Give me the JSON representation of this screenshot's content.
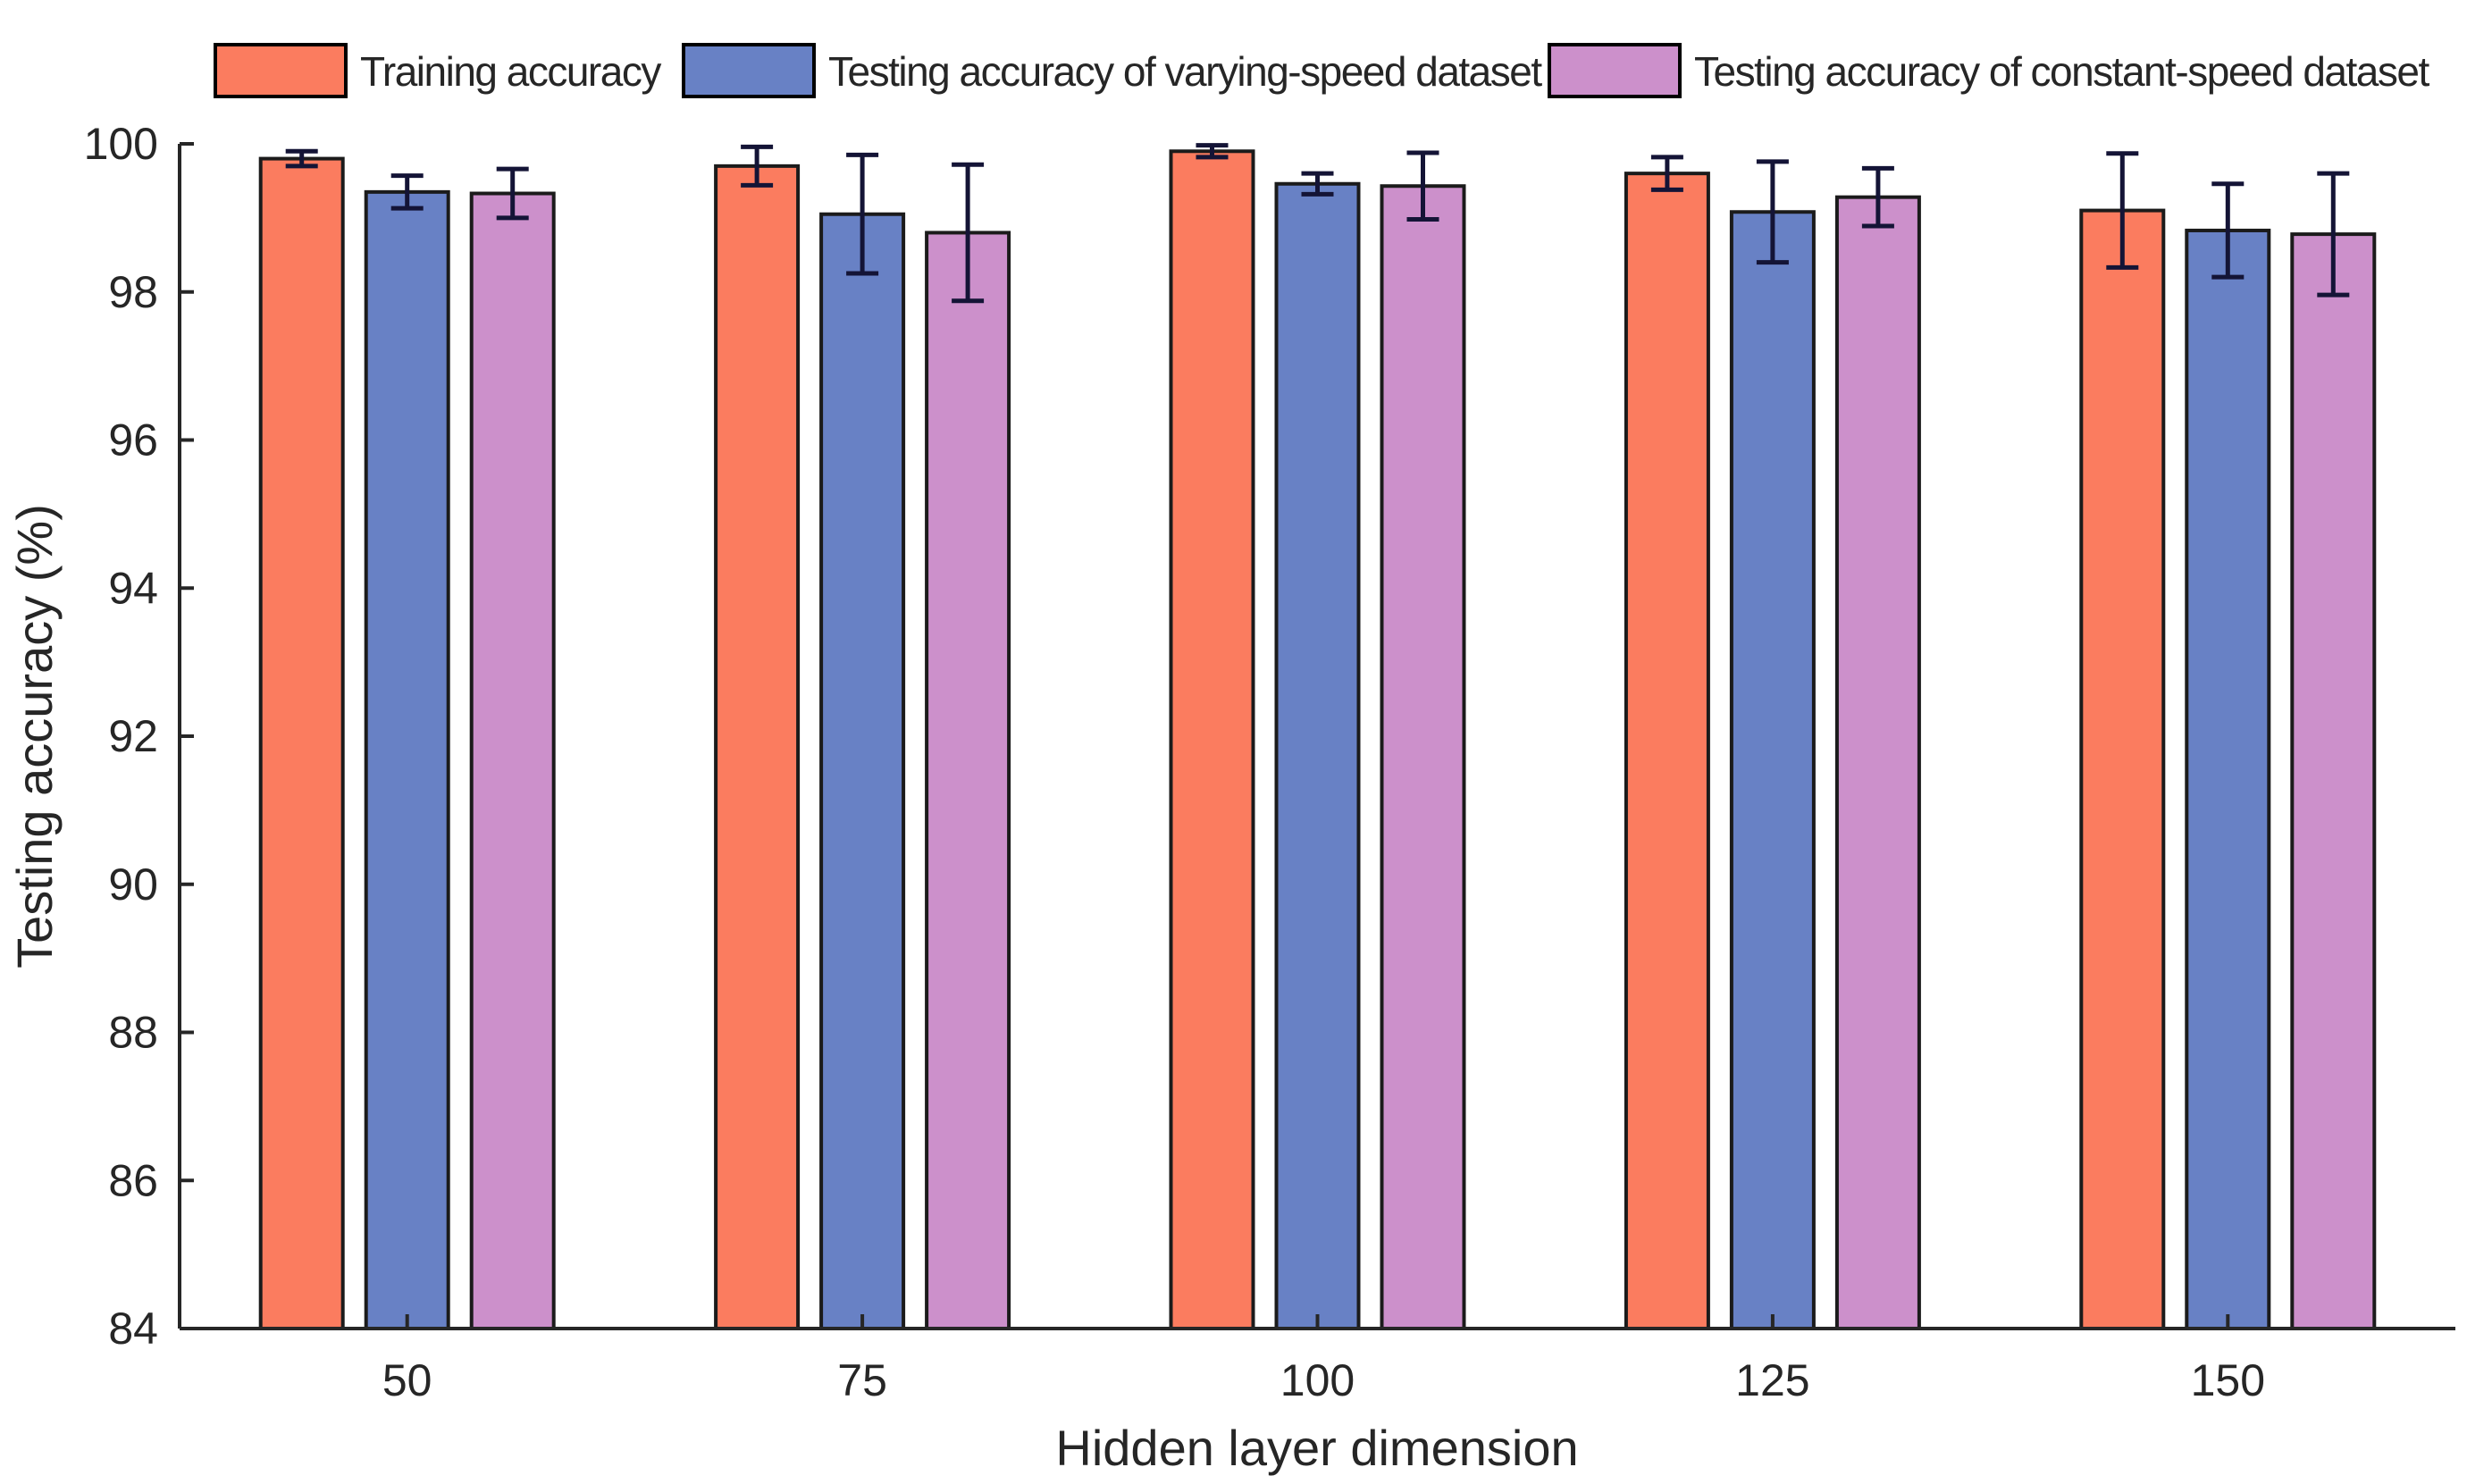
{
  "figure": {
    "background": "#ffffff"
  },
  "legend": {
    "position": "top",
    "items": [
      {
        "label": "Training accuracy",
        "color": "#FB7C5F",
        "swatch": "orange-swatch"
      },
      {
        "label": "Testing accuracy of varying-speed dataset",
        "color": "#6881C5",
        "swatch": "blue-swatch"
      },
      {
        "label": "Testing accuracy of constant-speed dataset",
        "color": "#CC90CB",
        "swatch": "purple-swatch"
      }
    ]
  },
  "chart_data": {
    "type": "bar",
    "title": "",
    "xlabel": "Hidden layer dimension",
    "ylabel": "Testing accuracy (%)",
    "categories": [
      "50",
      "75",
      "100",
      "125",
      "150"
    ],
    "ylim": [
      84,
      100
    ],
    "ytick_step": 2,
    "yticks": [
      84,
      86,
      88,
      90,
      92,
      94,
      96,
      98,
      100
    ],
    "grid": false,
    "error_bars": true,
    "legend_position": "top",
    "series": [
      {
        "name": "Training accuracy",
        "color": "#FB7C5F",
        "values": [
          99.8,
          99.7,
          99.9,
          99.6,
          99.1
        ],
        "errors": [
          0.1,
          0.26,
          0.08,
          0.22,
          0.77
        ]
      },
      {
        "name": "Testing accuracy of varying-speed dataset",
        "color": "#6881C5",
        "values": [
          99.35,
          99.05,
          99.46,
          99.08,
          98.83
        ],
        "errors": [
          0.22,
          0.8,
          0.14,
          0.68,
          0.63
        ]
      },
      {
        "name": "Testing accuracy of constant-speed dataset",
        "color": "#CC90CB",
        "values": [
          99.33,
          98.8,
          99.43,
          99.28,
          98.78
        ],
        "errors": [
          0.33,
          0.92,
          0.45,
          0.39,
          0.82
        ]
      }
    ],
    "colors": {
      "bar_edge": "#1b1b1b",
      "error_bar": "#141436",
      "axis": "#262626",
      "text": "#262626"
    }
  }
}
